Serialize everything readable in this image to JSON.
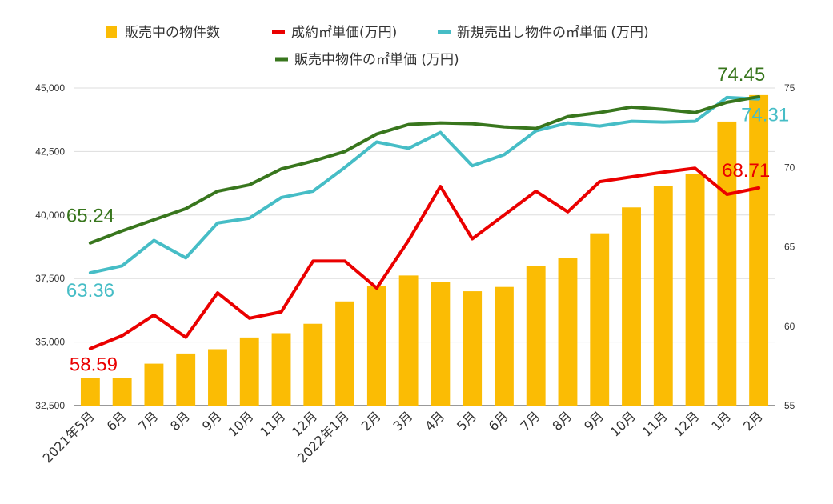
{
  "chart_data": {
    "type": "bar",
    "categories": [
      "2021年5月",
      "6月",
      "7月",
      "8月",
      "9月",
      "10月",
      "11月",
      "12月",
      "2022年1月",
      "2月",
      "3月",
      "4月",
      "5月",
      "6月",
      "7月",
      "8月",
      "9月",
      "10月",
      "11月",
      "12月",
      "1月",
      "2月"
    ],
    "left_axis": {
      "ylim": [
        32500,
        45000
      ],
      "ticks": [
        "32,500",
        "35,000",
        "37,500",
        "40,000",
        "42,500",
        "45,000"
      ]
    },
    "right_axis": {
      "ylim": [
        55,
        75
      ],
      "ticks": [
        "55",
        "60",
        "65",
        "70",
        "75"
      ]
    },
    "grid": true,
    "legend_position": "top",
    "series": [
      {
        "name": "販売中の物件数",
        "type": "bar",
        "axis": "left",
        "color": "#FBBC04",
        "values": [
          33580,
          33580,
          34150,
          34550,
          34720,
          35180,
          35350,
          35720,
          36600,
          37200,
          37620,
          37350,
          37000,
          37170,
          38000,
          38320,
          39280,
          40300,
          41130,
          41620,
          43680,
          44720
        ]
      },
      {
        "name": "成約㎡単価(万円)",
        "type": "line",
        "axis": "right",
        "color": "#EA0000",
        "values": [
          58.59,
          59.4,
          60.7,
          59.3,
          62.1,
          60.5,
          60.9,
          64.1,
          64.1,
          62.4,
          65.4,
          68.8,
          65.5,
          67.0,
          68.5,
          67.2,
          69.1,
          69.4,
          69.7,
          69.95,
          68.3,
          68.71
        ]
      },
      {
        "name": "新規売出し物件の㎡単価 (万円)",
        "type": "line",
        "axis": "right",
        "color": "#46BDC6",
        "values": [
          63.36,
          63.8,
          65.4,
          64.3,
          66.5,
          66.8,
          68.1,
          68.5,
          70.0,
          71.6,
          71.2,
          72.2,
          70.1,
          70.8,
          72.3,
          72.8,
          72.6,
          72.9,
          72.85,
          72.9,
          74.4,
          74.31
        ]
      },
      {
        "name": "販売中物件の㎡単価 (万円)",
        "type": "line",
        "axis": "right",
        "color": "#38761D",
        "values": [
          65.24,
          66.0,
          66.7,
          67.4,
          68.5,
          68.9,
          69.9,
          70.4,
          71.0,
          72.1,
          72.7,
          72.8,
          72.75,
          72.55,
          72.45,
          73.2,
          73.45,
          73.8,
          73.65,
          73.45,
          74.1,
          74.45
        ]
      }
    ],
    "annotations": [
      {
        "series": 1,
        "index": 0,
        "text": "58.59"
      },
      {
        "series": 1,
        "index": 21,
        "text": "68.71"
      },
      {
        "series": 2,
        "index": 0,
        "text": "63.36"
      },
      {
        "series": 2,
        "index": 21,
        "text": "74.31"
      },
      {
        "series": 3,
        "index": 0,
        "text": "65.24"
      },
      {
        "series": 3,
        "index": 21,
        "text": "74.45"
      }
    ]
  }
}
